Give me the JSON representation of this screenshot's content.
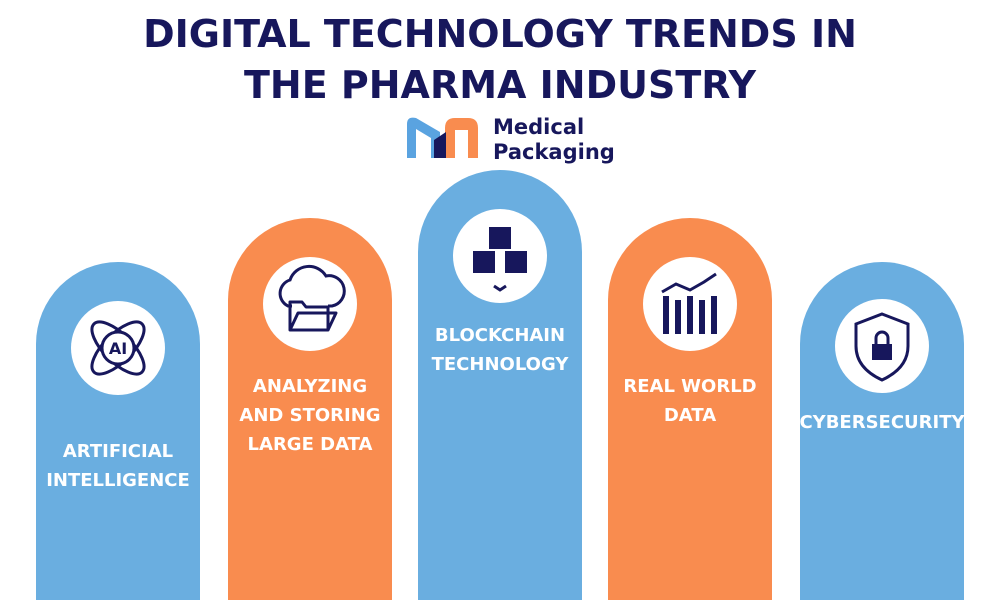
{
  "header": {
    "title_lines": [
      "DIGITAL TECHNOLOGY TRENDS IN",
      "THE PHARMA INDUSTRY"
    ]
  },
  "logo": {
    "lines": [
      "Medical",
      "Packaging"
    ]
  },
  "cards": [
    {
      "lines": [
        "ARTIFICIAL",
        "INTELLIGENCE"
      ],
      "icon_text": "AI"
    },
    {
      "lines": [
        "ANALYZING",
        "AND STORING",
        "LARGE DATA"
      ]
    },
    {
      "lines": [
        "BLOCKCHAIN",
        "TECHNOLOGY"
      ]
    },
    {
      "lines": [
        "REAL WORLD",
        "DATA"
      ]
    },
    {
      "lines": [
        "CYBERSECURITY"
      ]
    }
  ]
}
